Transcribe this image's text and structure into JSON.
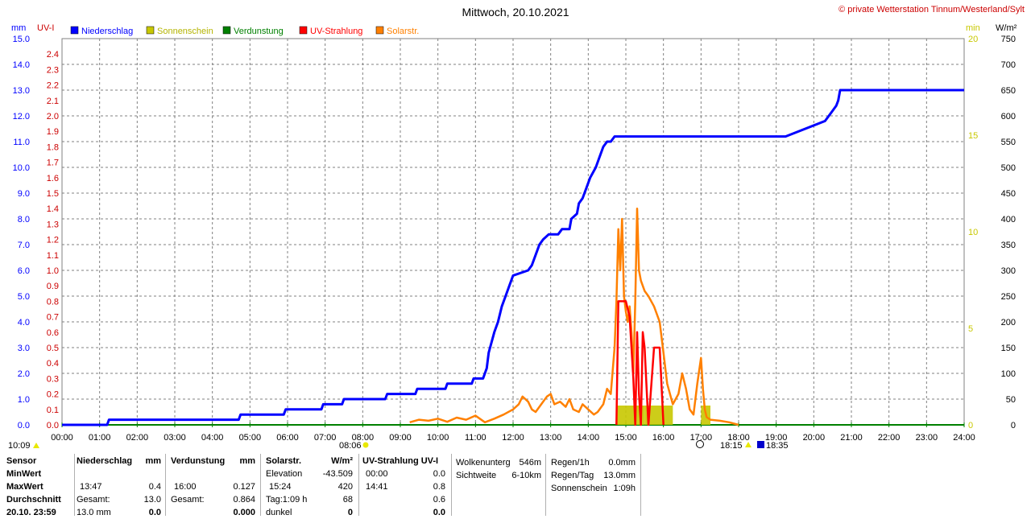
{
  "header": {
    "title": "Mittwoch, 20.10.2021",
    "copyright": "© private Wetterstation Tinnum/Westerland/Sylt"
  },
  "axes": {
    "left_unit_mm": "mm",
    "left_unit_uv": "UV-I",
    "right_unit_min": "min",
    "right_unit_wm2": "W/m²"
  },
  "legend": [
    {
      "label": "Niederschlag",
      "color": "#0000ff"
    },
    {
      "label": "Sonnenschein",
      "color": "#c8c800"
    },
    {
      "label": "Verdunstung",
      "color": "#008000"
    },
    {
      "label": "UV-Strahlung",
      "color": "#ff0000"
    },
    {
      "label": "Solarstr.",
      "color": "#ff8000"
    }
  ],
  "sun_events": {
    "sunrise_icon_time": "10:09",
    "sunrise": "08:06",
    "sunset": "18:15",
    "moon": "18:35"
  },
  "chart_data": {
    "type": "line",
    "title": "Mittwoch, 20.10.2021",
    "x_ticks": [
      "00:00",
      "01:00",
      "02:00",
      "03:00",
      "04:00",
      "05:00",
      "06:00",
      "07:00",
      "08:00",
      "09:00",
      "10:00",
      "11:00",
      "12:00",
      "13:00",
      "14:00",
      "15:00",
      "16:00",
      "17:00",
      "18:00",
      "19:00",
      "20:00",
      "21:00",
      "22:00",
      "23:00",
      "24:00"
    ],
    "axis_mm": {
      "label": "mm",
      "ylim": [
        0,
        15
      ],
      "ticks": [
        "0.0",
        "1.0",
        "2.0",
        "3.0",
        "4.0",
        "5.0",
        "6.0",
        "7.0",
        "8.0",
        "9.0",
        "10.0",
        "11.0",
        "12.0",
        "13.0",
        "14.0",
        "15.0"
      ]
    },
    "axis_uv": {
      "label": "UV-I",
      "ylim": [
        0,
        2.5
      ],
      "ticks": [
        "0.0",
        "0.1",
        "0.2",
        "0.3",
        "0.4",
        "0.5",
        "0.6",
        "0.7",
        "0.8",
        "0.9",
        "1.0",
        "1.1",
        "1.2",
        "1.3",
        "1.4",
        "1.5",
        "1.6",
        "1.7",
        "1.8",
        "1.9",
        "2.0",
        "2.1",
        "2.2",
        "2.3",
        "2.4"
      ]
    },
    "axis_min": {
      "label": "min",
      "ylim": [
        0,
        20
      ],
      "ticks": [
        "0",
        "5",
        "10",
        "15",
        "20"
      ]
    },
    "axis_wm2": {
      "label": "W/m²",
      "ylim": [
        0,
        750
      ],
      "ticks": [
        "0",
        "50",
        "100",
        "150",
        "200",
        "250",
        "300",
        "350",
        "400",
        "450",
        "500",
        "550",
        "600",
        "650",
        "700",
        "750"
      ]
    },
    "series": [
      {
        "name": "Niederschlag",
        "axis": "mm",
        "color": "#0000ff",
        "x": [
          0,
          1.2,
          1.25,
          4.7,
          4.75,
          5.9,
          5.95,
          6.9,
          6.95,
          7.45,
          7.5,
          8.6,
          8.65,
          9.4,
          9.45,
          10.2,
          10.25,
          10.9,
          10.95,
          11.2,
          11.3,
          11.35,
          11.5,
          11.6,
          11.7,
          11.8,
          11.9,
          12.0,
          12.4,
          12.5,
          12.6,
          12.7,
          12.8,
          12.95,
          13.2,
          13.3,
          13.5,
          13.55,
          13.7,
          13.75,
          13.85,
          13.95,
          14.05,
          14.2,
          14.3,
          14.4,
          14.5,
          14.6,
          14.7,
          16.0,
          16.6,
          16.7,
          17.9,
          17.95,
          19.2,
          19.25,
          20.3,
          20.4,
          20.5,
          20.6,
          20.65,
          20.7,
          24
        ],
        "y": [
          0,
          0,
          0.2,
          0.2,
          0.4,
          0.4,
          0.6,
          0.6,
          0.8,
          0.8,
          1.0,
          1.0,
          1.2,
          1.2,
          1.4,
          1.4,
          1.6,
          1.6,
          1.8,
          1.8,
          2.2,
          2.8,
          3.6,
          4.0,
          4.6,
          5.0,
          5.4,
          5.8,
          6.0,
          6.2,
          6.6,
          7.0,
          7.2,
          7.4,
          7.4,
          7.6,
          7.6,
          8.0,
          8.2,
          8.6,
          8.8,
          9.2,
          9.6,
          10.0,
          10.4,
          10.8,
          11.0,
          11.0,
          11.2,
          11.2,
          11.2,
          11.2,
          11.2,
          11.2,
          11.2,
          11.2,
          11.8,
          12.0,
          12.2,
          12.4,
          12.6,
          13.0,
          13.0
        ]
      },
      {
        "name": "Solarstr.",
        "axis": "wm2",
        "color": "#ff8000",
        "x": [
          9.25,
          9.5,
          9.75,
          10.0,
          10.25,
          10.5,
          10.75,
          11.0,
          11.25,
          11.5,
          11.75,
          12.0,
          12.15,
          12.25,
          12.4,
          12.5,
          12.6,
          12.75,
          12.9,
          13.0,
          13.1,
          13.25,
          13.4,
          13.5,
          13.6,
          13.75,
          13.85,
          14.0,
          14.15,
          14.25,
          14.4,
          14.5,
          14.6,
          14.7,
          14.75,
          14.8,
          14.85,
          14.9,
          14.95,
          15.0,
          15.05,
          15.1,
          15.15,
          15.2,
          15.25,
          15.3,
          15.35,
          15.4,
          15.45,
          15.5,
          15.6,
          15.75,
          15.9,
          16.0,
          16.1,
          16.25,
          16.4,
          16.5,
          16.6,
          16.7,
          16.8,
          16.9,
          17.0,
          17.05,
          17.1,
          17.15,
          17.25,
          17.5,
          17.75,
          18.0
        ],
        "y": [
          5,
          10,
          8,
          12,
          6,
          14,
          10,
          18,
          5,
          12,
          20,
          30,
          40,
          55,
          45,
          30,
          25,
          40,
          55,
          60,
          40,
          45,
          35,
          50,
          30,
          25,
          40,
          30,
          20,
          25,
          40,
          70,
          60,
          150,
          240,
          380,
          300,
          400,
          250,
          220,
          200,
          230,
          180,
          100,
          240,
          420,
          300,
          280,
          270,
          260,
          250,
          230,
          200,
          140,
          80,
          40,
          60,
          100,
          70,
          30,
          20,
          80,
          130,
          70,
          30,
          15,
          10,
          8,
          5,
          0
        ]
      },
      {
        "name": "UV-Strahlung",
        "axis": "uv",
        "color": "#ff0000",
        "x": [
          14.75,
          14.8,
          14.85,
          15.0,
          15.1,
          15.15,
          15.2,
          15.25,
          15.3,
          15.35,
          15.4,
          15.45,
          15.5,
          15.6,
          15.75,
          15.85,
          15.9,
          16.0
        ],
        "y": [
          0,
          0.8,
          0.8,
          0.8,
          0.7,
          0.5,
          0.3,
          0.0,
          0.6,
          0.2,
          0.0,
          0.6,
          0.5,
          0.0,
          0.5,
          0.5,
          0.5,
          0.0
        ]
      },
      {
        "name": "Sonnenschein",
        "axis": "min",
        "type": "bar",
        "color": "#c8c800",
        "x": [
          14.75,
          15.0,
          15.25,
          15.5,
          15.75,
          16.0,
          16.25,
          17.0,
          17.25
        ],
        "y": [
          1,
          1,
          1,
          1,
          1,
          1,
          0,
          1,
          0
        ]
      }
    ]
  },
  "table": {
    "sensor": {
      "title": "Sensor",
      "rows": [
        "MinWert",
        "MaxWert",
        "Durchschnitt",
        "20.10. 23:59"
      ]
    },
    "niederschlag": {
      "title": "Niederschlag",
      "unit": "mm",
      "max_time": "13:47",
      "max_val": "0.4",
      "sum_label": "Gesamt:",
      "sum_val": "13.0",
      "last_time": "13.0 mm",
      "last_val": "0.0"
    },
    "verdunstung": {
      "title": "Verdunstung",
      "unit": "mm",
      "max_time": "16:00",
      "max_val": "0.127",
      "sum_label": "Gesamt:",
      "sum_val": "0.864",
      "last_val": "0.000"
    },
    "solar": {
      "title": "Solarstr.",
      "unit": "W/m²",
      "min_label": "Elevation",
      "min_val": "-43.509",
      "max_time": "15:24",
      "max_val": "420",
      "avg_label": "Tag:1:09 h",
      "avg_val": "68",
      "last_label": "dunkel",
      "last_val": "0"
    },
    "uv": {
      "title": "UV-Strahlung UV-I",
      "min_time": "00:00",
      "min_val": "0.0",
      "max_time": "14:41",
      "max_val": "0.8",
      "avg_val": "0.6",
      "last_val": "0.0"
    },
    "wolken": {
      "label1": "Wolkenunterg",
      "val1": "546m",
      "label2": "Sichtweite",
      "val2": "6-10km"
    },
    "regen": {
      "label1": "Regen/1h",
      "val1": "0.0mm",
      "label2": "Regen/Tag",
      "val2": "13.0mm",
      "label3": "Sonnenschein",
      "val3": "1:09h"
    }
  }
}
